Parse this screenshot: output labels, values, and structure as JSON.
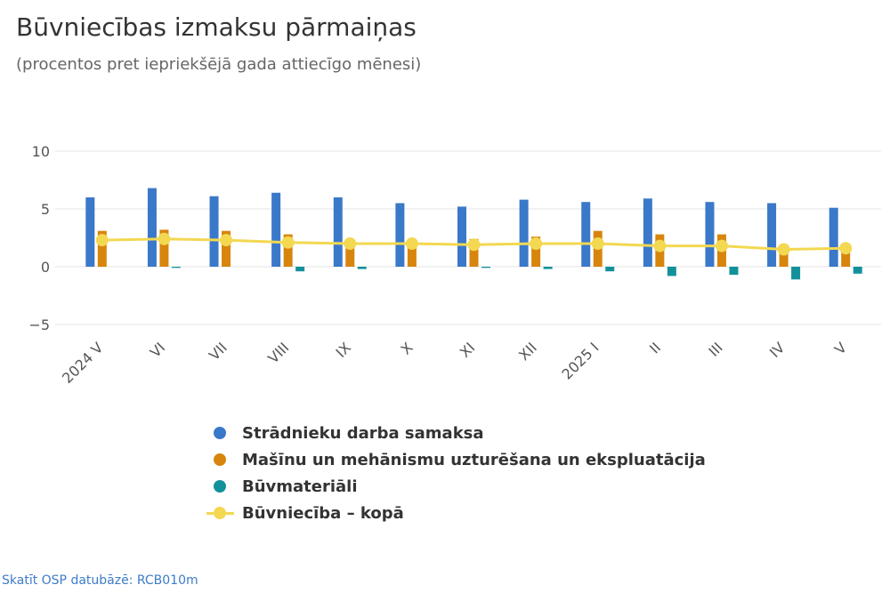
{
  "header": {
    "title": "Būvniecības izmaksu pārmaiņas",
    "subtitle": "(procentos pret iepriekšējā gada attiecīgo mēnesi)"
  },
  "source": {
    "label": "Skatīt OSP datubāzē: RCB010m"
  },
  "colors": {
    "labour": "#3a78c9",
    "machinery": "#d7850c",
    "materials": "#13919b",
    "total": "#f3d851",
    "grid": "#e6e6e6",
    "axis_text": "#555555"
  },
  "chart_data": {
    "type": "bar",
    "title": "Būvniecības izmaksu pārmaiņas",
    "subtitle": "(procentos pret iepriekšējā gada attiecīgo mēnesi)",
    "categories": [
      "2024 V",
      "VI",
      "VII",
      "VIII",
      "IX",
      "X",
      "XI",
      "XII",
      "2025 I",
      "II",
      "III",
      "IV",
      "V"
    ],
    "ylim": [
      -5,
      10
    ],
    "yticks": [
      -5,
      0,
      5,
      10
    ],
    "yticks_labels": [
      "−5",
      "0",
      "5",
      "10"
    ],
    "grid": true,
    "legend_position": "bottom",
    "series": [
      {
        "name": "Strādnieku darba samaksa",
        "type": "bar",
        "color": "#3a78c9",
        "values": [
          6.0,
          6.8,
          6.1,
          6.4,
          6.0,
          5.5,
          5.2,
          5.8,
          5.6,
          5.9,
          5.6,
          5.5,
          5.1
        ]
      },
      {
        "name": "Mašīnu un mehānismu uzturēšana un ekspluatācija",
        "type": "bar",
        "color": "#d7850c",
        "values": [
          3.1,
          3.2,
          3.1,
          2.8,
          2.2,
          2.0,
          2.4,
          2.6,
          3.1,
          2.8,
          2.8,
          1.6,
          1.5
        ]
      },
      {
        "name": "Būvmateriāli",
        "type": "bar",
        "color": "#13919b",
        "values": [
          0.0,
          -0.1,
          0.0,
          -0.4,
          -0.2,
          0.0,
          -0.1,
          -0.2,
          -0.4,
          -0.8,
          -0.7,
          -1.1,
          -0.6
        ]
      },
      {
        "name": "Būvniecība – kopā",
        "type": "line",
        "color": "#f3d851",
        "values": [
          2.3,
          2.4,
          2.3,
          2.1,
          2.0,
          2.0,
          1.9,
          2.0,
          2.0,
          1.8,
          1.8,
          1.5,
          1.6
        ]
      }
    ]
  }
}
